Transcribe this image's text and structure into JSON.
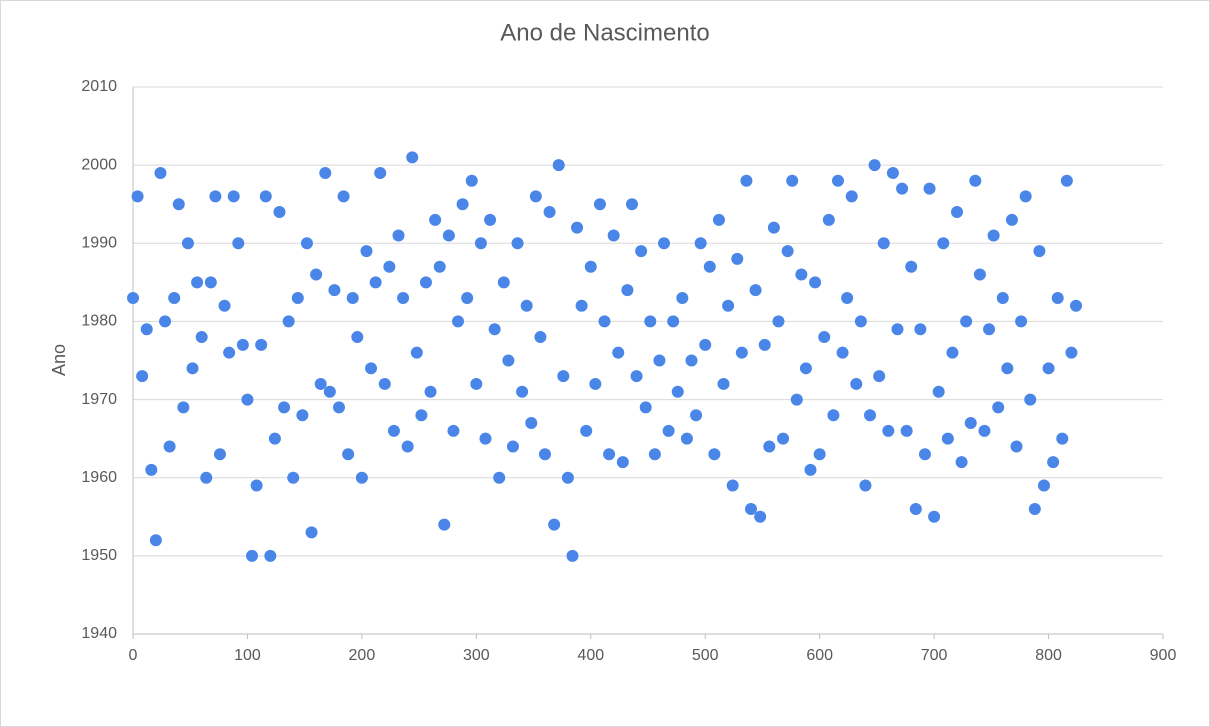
{
  "chart_data": {
    "type": "scatter",
    "title": "Ano de Nascimento",
    "y_label": "Ano",
    "color": "#4a86e8",
    "grid": true,
    "xlim": [
      0,
      900
    ],
    "xticks": [
      0,
      100,
      200,
      300,
      400,
      500,
      600,
      700,
      800,
      900
    ],
    "ylim": [
      1940,
      2010
    ],
    "yticks": [
      1940,
      1950,
      1960,
      1970,
      1980,
      1990,
      2000,
      2010
    ],
    "x": [
      0,
      4,
      8,
      12,
      16,
      20,
      24,
      28,
      32,
      36,
      40,
      44,
      48,
      52,
      56,
      60,
      64,
      68,
      72,
      76,
      80,
      84,
      88,
      92,
      96,
      100,
      104,
      108,
      112,
      116,
      120,
      124,
      128,
      132,
      136,
      140,
      144,
      148,
      152,
      156,
      160,
      164,
      168,
      172,
      176,
      180,
      184,
      188,
      192,
      196,
      200,
      204,
      208,
      212,
      216,
      220,
      224,
      228,
      232,
      236,
      240,
      244,
      248,
      252,
      256,
      260,
      264,
      268,
      272,
      276,
      280,
      284,
      288,
      292,
      296,
      300,
      304,
      308,
      312,
      316,
      320,
      324,
      328,
      332,
      336,
      340,
      344,
      348,
      352,
      356,
      360,
      364,
      368,
      372,
      376,
      380,
      384,
      388,
      392,
      396,
      400,
      404,
      408,
      412,
      416,
      420,
      424,
      428,
      432,
      436,
      440,
      444,
      448,
      452,
      456,
      460,
      464,
      468,
      472,
      476,
      480,
      484,
      488,
      492,
      496,
      500,
      504,
      508,
      512,
      516,
      520,
      524,
      528,
      532,
      536,
      540,
      544,
      548,
      552,
      556,
      560,
      564,
      568,
      572,
      576,
      580,
      584,
      588,
      592,
      596,
      600,
      604,
      608,
      612,
      616,
      620,
      624,
      628,
      632,
      636,
      640,
      644,
      648,
      652,
      656,
      660,
      664,
      668,
      672,
      676,
      680,
      684,
      688,
      692,
      696,
      700,
      704,
      708,
      712,
      716,
      720,
      724,
      728,
      732,
      736,
      740,
      744,
      748,
      752,
      756,
      760,
      764,
      768,
      772,
      776,
      780,
      784,
      788,
      792,
      796,
      800,
      804,
      808,
      812,
      816,
      820,
      824
    ],
    "values": [
      1983,
      1996,
      1973,
      1979,
      1961,
      1952,
      1999,
      1980,
      1964,
      1983,
      1995,
      1969,
      1990,
      1974,
      1985,
      1978,
      1960,
      1985,
      1996,
      1963,
      1982,
      1976,
      1996,
      1990,
      1977,
      1970,
      1950,
      1959,
      1977,
      1996,
      1950,
      1965,
      1994,
      1969,
      1980,
      1960,
      1983,
      1968,
      1990,
      1953,
      1986,
      1972,
      1999,
      1971,
      1984,
      1969,
      1996,
      1963,
      1983,
      1978,
      1960,
      1989,
      1974,
      1985,
      1999,
      1972,
      1987,
      1966,
      1991,
      1983,
      1964,
      2001,
      1976,
      1968,
      1985,
      1971,
      1993,
      1987,
      1954,
      1991,
      1966,
      1980,
      1995,
      1983,
      1998,
      1972,
      1990,
      1965,
      1993,
      1979,
      1960,
      1985,
      1975,
      1964,
      1990,
      1971,
      1982,
      1967,
      1996,
      1978,
      1963,
      1994,
      1954,
      2000,
      1973,
      1960,
      1950,
      1992,
      1982,
      1966,
      1987,
      1972,
      1995,
      1980,
      1963,
      1991,
      1976,
      1962,
      1984,
      1995,
      1973,
      1989,
      1969,
      1980,
      1963,
      1975,
      1990,
      1966,
      1980,
      1971,
      1983,
      1965,
      1975,
      1968,
      1990,
      1977,
      1987,
      1963,
      1993,
      1972,
      1982,
      1959,
      1988,
      1976,
      1998,
      1956,
      1984,
      1955,
      1977,
      1964,
      1992,
      1980,
      1965,
      1989,
      1998,
      1970,
      1986,
      1974,
      1961,
      1985,
      1963,
      1978,
      1993,
      1968,
      1998,
      1976,
      1983,
      1996,
      1972,
      1980,
      1959,
      1968,
      2000,
      1973,
      1990,
      1966,
      1999,
      1979,
      1997,
      1966,
      1987,
      1956,
      1979,
      1963,
      1997,
      1955,
      1971,
      1990,
      1965,
      1976,
      1994,
      1962,
      1980,
      1967,
      1998,
      1986,
      1966,
      1979,
      1991,
      1969,
      1983,
      1974,
      1993,
      1964,
      1980,
      1996,
      1970,
      1956,
      1989,
      1959,
      1974,
      1962,
      1983,
      1965,
      1998,
      1976,
      1982
    ]
  }
}
